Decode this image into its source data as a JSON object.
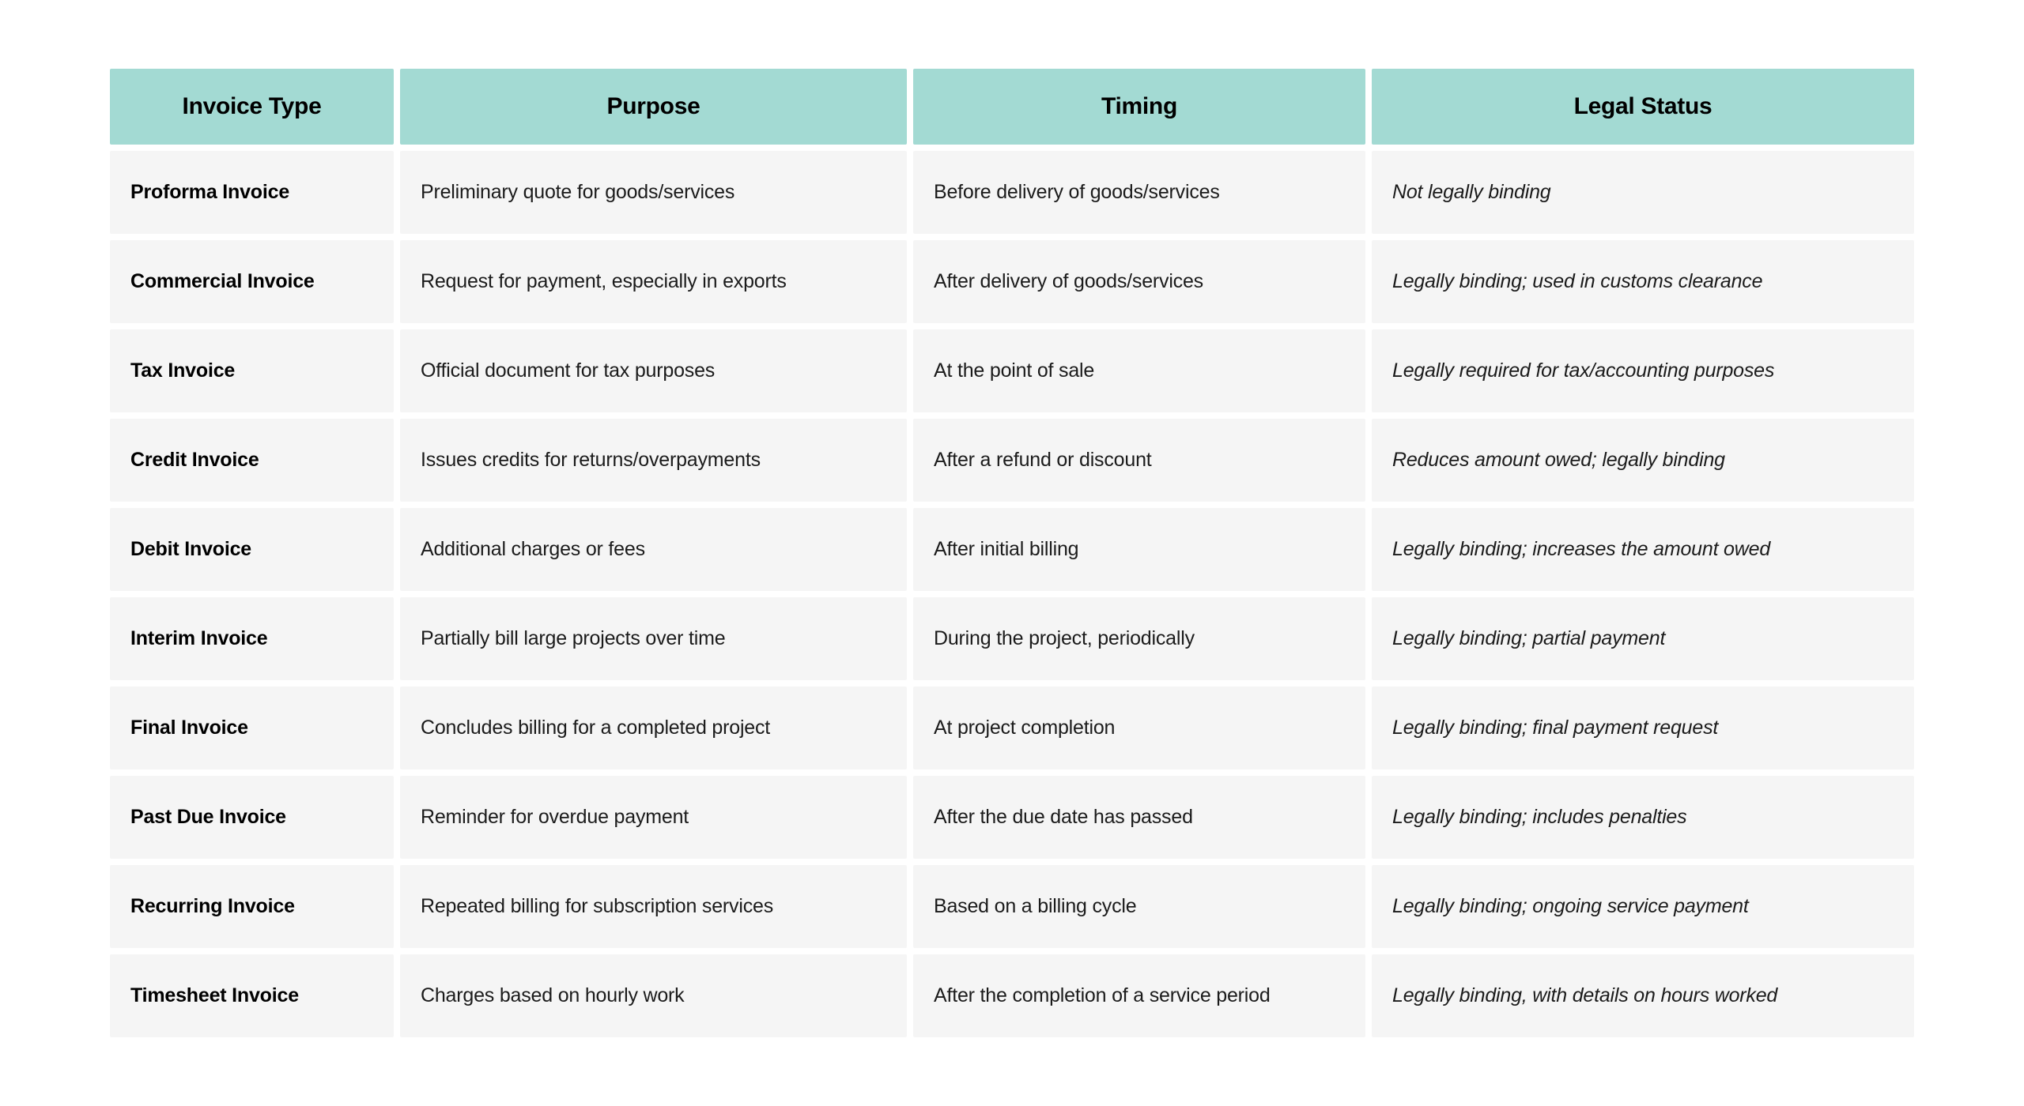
{
  "styles": {
    "header_bg": "#a3dad3",
    "row_bg": "#f5f5f5",
    "page_bg": "#ffffff",
    "header_text": "#000000",
    "body_text": "#1b1b1b"
  },
  "chart_data": {
    "type": "table",
    "columns": [
      "Invoice Type",
      "Purpose",
      "Timing",
      "Legal Status"
    ],
    "rows": [
      [
        "Proforma Invoice",
        "Preliminary quote for goods/services",
        "Before delivery of goods/services",
        "Not legally binding"
      ],
      [
        "Commercial Invoice",
        "Request for payment, especially in exports",
        "After delivery of goods/services",
        "Legally binding; used in customs clearance"
      ],
      [
        "Tax Invoice",
        "Official document for tax purposes",
        "At the point of sale",
        "Legally required for tax/accounting purposes"
      ],
      [
        "Credit Invoice",
        "Issues credits for returns/overpayments",
        "After a refund or discount",
        "Reduces amount owed; legally binding"
      ],
      [
        "Debit Invoice",
        "Additional charges or fees",
        "After initial billing",
        "Legally binding; increases the amount owed"
      ],
      [
        "Interim Invoice",
        "Partially bill large projects over time",
        "During the project, periodically",
        "Legally binding; partial payment"
      ],
      [
        "Final Invoice",
        "Concludes billing for a completed project",
        "At project completion",
        "Legally binding; final payment request"
      ],
      [
        "Past Due Invoice",
        "Reminder for overdue payment",
        "After the due date has passed",
        "Legally binding; includes penalties"
      ],
      [
        "Recurring Invoice",
        "Repeated billing for subscription services",
        "Based on a billing cycle",
        "Legally binding; ongoing service payment"
      ],
      [
        "Timesheet Invoice",
        "Charges based on hourly work",
        "After the completion of a service period",
        "Legally binding, with details on hours worked"
      ]
    ]
  }
}
